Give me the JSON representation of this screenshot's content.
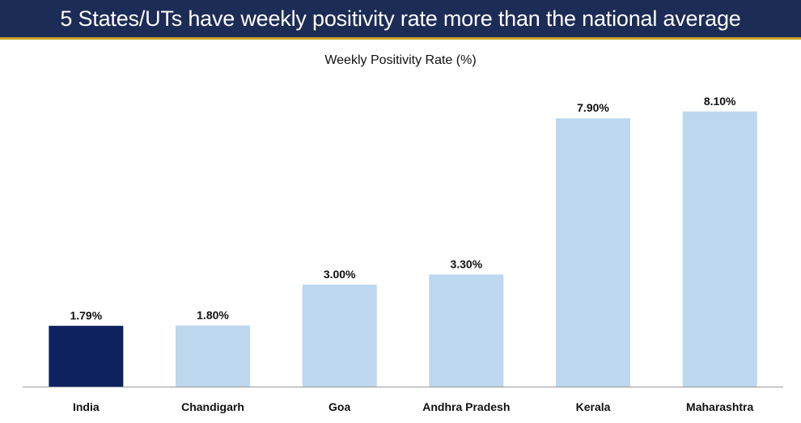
{
  "header": {
    "title": "5 States/UTs have weekly positivity rate more than the national average"
  },
  "colors": {
    "banner": "#1d2c56",
    "highlight_bar": "#0e2260",
    "default_bar": "#bdd7ee",
    "axis": "#999999"
  },
  "chart_data": {
    "type": "bar",
    "title": "Weekly Positivity Rate (%)",
    "xlabel": "",
    "ylabel": "",
    "categories": [
      "India",
      "Chandigarh",
      "Goa",
      "Andhra Pradesh",
      "Kerala",
      "Maharashtra"
    ],
    "values": [
      1.79,
      1.8,
      3.0,
      3.3,
      7.9,
      8.1
    ],
    "value_labels": [
      "1.79%",
      "1.80%",
      "3.00%",
      "3.30%",
      "7.90%",
      "8.10%"
    ],
    "highlighted_category": "India",
    "ylim": [
      0,
      9
    ],
    "grid": false,
    "legend": "none"
  }
}
